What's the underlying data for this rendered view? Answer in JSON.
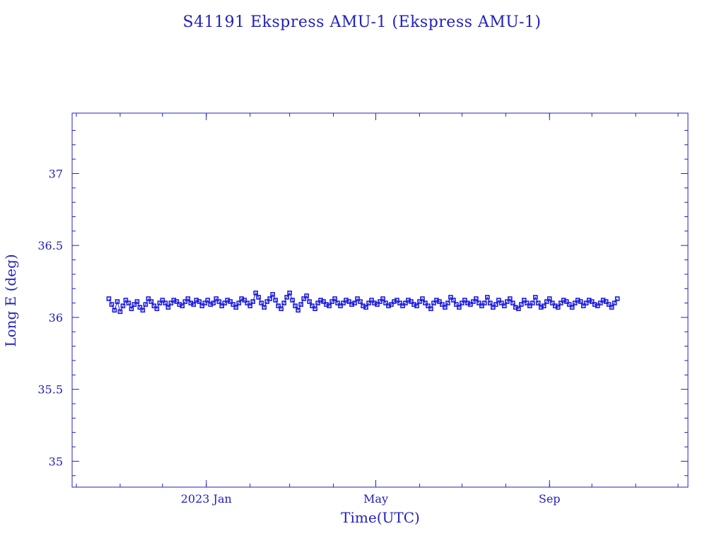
{
  "chart_data": {
    "type": "scatter",
    "title": "S41191 Ekspress AMU-1  (Ekspress AMU-1)",
    "xlabel": "Time(UTC)",
    "ylabel": "Long E (deg)",
    "xlim": [
      "2022-09-28",
      "2023-12-08"
    ],
    "ylim": [
      34.82,
      37.42
    ],
    "x_ticks": [
      {
        "date": "2023-01-01",
        "label": "2023 Jan"
      },
      {
        "date": "2023-05-01",
        "label": "May"
      },
      {
        "date": "2023-09-01",
        "label": "Sep"
      }
    ],
    "y_ticks": [
      {
        "value": 35,
        "label": "35"
      },
      {
        "value": 35.5,
        "label": "35.5"
      },
      {
        "value": 36,
        "label": "36"
      },
      {
        "value": 36.5,
        "label": "36.5"
      },
      {
        "value": 37,
        "label": "37"
      }
    ],
    "grid": false,
    "series": [
      {
        "color": "#1a1adf",
        "marker": "square",
        "x": [
          "2022-10-24",
          "2022-10-26",
          "2022-10-28",
          "2022-10-30",
          "2022-11-01",
          "2022-11-03",
          "2022-11-05",
          "2022-11-07",
          "2022-11-09",
          "2022-11-11",
          "2022-11-13",
          "2022-11-15",
          "2022-11-17",
          "2022-11-19",
          "2022-11-21",
          "2022-11-23",
          "2022-11-25",
          "2022-11-27",
          "2022-11-29",
          "2022-12-01",
          "2022-12-03",
          "2022-12-05",
          "2022-12-07",
          "2022-12-09",
          "2022-12-11",
          "2022-12-13",
          "2022-12-15",
          "2022-12-17",
          "2022-12-19",
          "2022-12-21",
          "2022-12-23",
          "2022-12-25",
          "2022-12-27",
          "2022-12-29",
          "2022-12-31",
          "2023-01-02",
          "2023-01-04",
          "2023-01-06",
          "2023-01-08",
          "2023-01-10",
          "2023-01-12",
          "2023-01-14",
          "2023-01-16",
          "2023-01-18",
          "2023-01-20",
          "2023-01-22",
          "2023-01-24",
          "2023-01-26",
          "2023-01-28",
          "2023-01-30",
          "2023-02-01",
          "2023-02-03",
          "2023-02-05",
          "2023-02-07",
          "2023-02-09",
          "2023-02-11",
          "2023-02-13",
          "2023-02-15",
          "2023-02-17",
          "2023-02-19",
          "2023-02-21",
          "2023-02-23",
          "2023-02-25",
          "2023-02-27",
          "2023-03-01",
          "2023-03-03",
          "2023-03-05",
          "2023-03-07",
          "2023-03-09",
          "2023-03-11",
          "2023-03-13",
          "2023-03-15",
          "2023-03-17",
          "2023-03-19",
          "2023-03-21",
          "2023-03-23",
          "2023-03-25",
          "2023-03-27",
          "2023-03-29",
          "2023-03-31",
          "2023-04-02",
          "2023-04-04",
          "2023-04-06",
          "2023-04-08",
          "2023-04-10",
          "2023-04-12",
          "2023-04-14",
          "2023-04-16",
          "2023-04-18",
          "2023-04-20",
          "2023-04-22",
          "2023-04-24",
          "2023-04-26",
          "2023-04-28",
          "2023-04-30",
          "2023-05-02",
          "2023-05-04",
          "2023-05-06",
          "2023-05-08",
          "2023-05-10",
          "2023-05-12",
          "2023-05-14",
          "2023-05-16",
          "2023-05-18",
          "2023-05-20",
          "2023-05-22",
          "2023-05-24",
          "2023-05-26",
          "2023-05-28",
          "2023-05-30",
          "2023-06-01",
          "2023-06-03",
          "2023-06-05",
          "2023-06-07",
          "2023-06-09",
          "2023-06-11",
          "2023-06-13",
          "2023-06-15",
          "2023-06-17",
          "2023-06-19",
          "2023-06-21",
          "2023-06-23",
          "2023-06-25",
          "2023-06-27",
          "2023-06-29",
          "2023-07-01",
          "2023-07-03",
          "2023-07-05",
          "2023-07-07",
          "2023-07-09",
          "2023-07-11",
          "2023-07-13",
          "2023-07-15",
          "2023-07-17",
          "2023-07-19",
          "2023-07-21",
          "2023-07-23",
          "2023-07-25",
          "2023-07-27",
          "2023-07-29",
          "2023-07-31",
          "2023-08-02",
          "2023-08-04",
          "2023-08-06",
          "2023-08-08",
          "2023-08-10",
          "2023-08-12",
          "2023-08-14",
          "2023-08-16",
          "2023-08-18",
          "2023-08-20",
          "2023-08-22",
          "2023-08-24",
          "2023-08-26",
          "2023-08-28",
          "2023-08-30",
          "2023-09-01",
          "2023-09-03",
          "2023-09-05",
          "2023-09-07",
          "2023-09-09",
          "2023-09-11",
          "2023-09-13",
          "2023-09-15",
          "2023-09-17",
          "2023-09-19",
          "2023-09-21",
          "2023-09-23",
          "2023-09-25",
          "2023-09-27",
          "2023-09-29",
          "2023-10-01",
          "2023-10-03",
          "2023-10-05",
          "2023-10-07",
          "2023-10-09",
          "2023-10-11",
          "2023-10-13",
          "2023-10-15",
          "2023-10-17",
          "2023-10-19"
        ],
        "y": [
          36.13,
          36.09,
          36.05,
          36.11,
          36.04,
          36.08,
          36.12,
          36.1,
          36.06,
          36.09,
          36.11,
          36.07,
          36.05,
          36.09,
          36.13,
          36.11,
          36.08,
          36.06,
          36.1,
          36.12,
          36.1,
          36.07,
          36.1,
          36.12,
          36.11,
          36.09,
          36.08,
          36.11,
          36.13,
          36.1,
          36.09,
          36.12,
          36.11,
          36.08,
          36.1,
          36.12,
          36.09,
          36.1,
          36.13,
          36.11,
          36.08,
          36.1,
          36.12,
          36.11,
          36.09,
          36.07,
          36.1,
          36.13,
          36.12,
          36.1,
          36.08,
          36.11,
          36.17,
          36.14,
          36.1,
          36.07,
          36.11,
          36.13,
          36.16,
          36.12,
          36.08,
          36.06,
          36.1,
          36.14,
          36.17,
          36.12,
          36.08,
          36.05,
          36.09,
          36.13,
          36.15,
          36.11,
          36.08,
          36.06,
          36.1,
          36.12,
          36.11,
          36.09,
          36.08,
          36.11,
          36.13,
          36.1,
          36.08,
          36.1,
          36.12,
          36.11,
          36.09,
          36.1,
          36.13,
          36.11,
          36.08,
          36.07,
          36.1,
          36.12,
          36.1,
          36.09,
          36.11,
          36.13,
          36.1,
          36.08,
          36.09,
          36.11,
          36.12,
          36.1,
          36.08,
          36.1,
          36.12,
          36.11,
          36.09,
          36.08,
          36.11,
          36.13,
          36.1,
          36.08,
          36.06,
          36.1,
          36.12,
          36.11,
          36.09,
          36.07,
          36.1,
          36.14,
          36.12,
          36.09,
          36.07,
          36.1,
          36.12,
          36.1,
          36.09,
          36.11,
          36.13,
          36.1,
          36.08,
          36.1,
          36.14,
          36.1,
          36.07,
          36.09,
          36.12,
          36.1,
          36.08,
          36.11,
          36.13,
          36.1,
          36.07,
          36.06,
          36.09,
          36.12,
          36.1,
          36.08,
          36.1,
          36.14,
          36.1,
          36.07,
          36.08,
          36.11,
          36.13,
          36.1,
          36.08,
          36.07,
          36.1,
          36.12,
          36.11,
          36.09,
          36.07,
          36.1,
          36.12,
          36.11,
          36.08,
          36.1,
          36.12,
          36.11,
          36.09,
          36.08,
          36.1,
          36.12,
          36.11,
          36.09,
          36.07,
          36.1,
          36.13
        ]
      }
    ]
  },
  "colors": {
    "axis": "#2020c0",
    "marker": "#1a1adf",
    "background": "#ffffff"
  }
}
